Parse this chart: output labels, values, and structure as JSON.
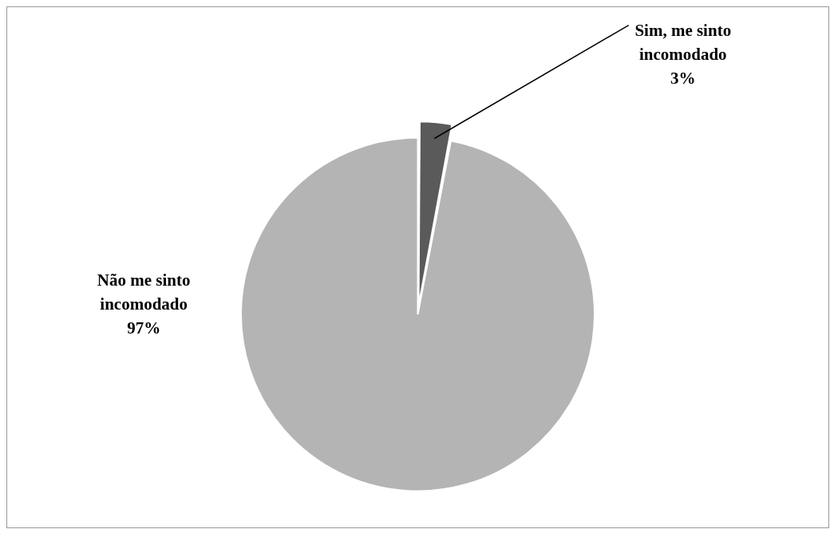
{
  "chart_data": {
    "type": "pie",
    "categories": [
      "Sim, me sinto incomodado",
      "Não me sinto incomodado"
    ],
    "values": [
      3,
      97
    ],
    "colors": [
      "#5a5a5a",
      "#b4b4b4"
    ],
    "value_labels": [
      "3%",
      "97%"
    ],
    "legend": false
  }
}
